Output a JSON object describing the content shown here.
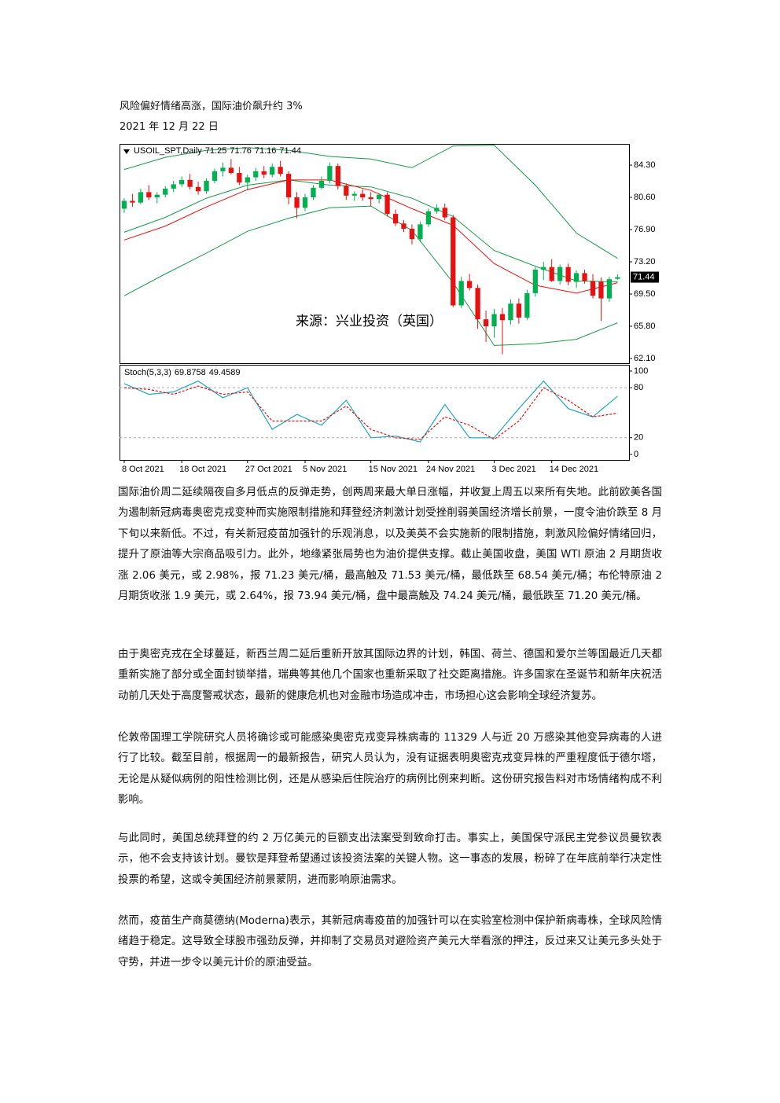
{
  "title": "风险偏好情绪高涨，国际油价飙升约 3%",
  "date": "2021 年 12 月 22 日",
  "chart_data": {
    "type": "candlestick",
    "symbol": "USOIL_SPT,Daily",
    "watermark": "来源：兴业投资（英国）",
    "up_color": "#00b050",
    "down_color": "#e81010",
    "open": [
      79.3,
      80.2,
      80.0,
      81.2,
      80.6,
      80.9,
      81.6,
      82.1,
      82.6,
      81.8,
      81.3,
      82.5,
      83.6,
      84.0,
      83.4,
      82.3,
      82.9,
      83.6,
      83.2,
      84.1,
      83.3,
      80.6,
      79.4,
      80.6,
      81.7,
      82.5,
      84.2,
      81.9,
      80.8,
      81.0,
      80.6,
      80.4,
      80.9,
      78.7,
      77.6,
      77.0,
      75.8,
      77.5,
      79.0,
      79.4,
      78.3,
      68.2,
      71.0,
      70.2,
      66.6,
      65.8,
      67.2,
      66.5,
      68.4,
      66.8,
      69.6,
      72.3,
      72.6,
      71.0,
      72.6,
      70.9,
      71.9,
      71.0,
      70.9,
      69.0,
      71.25
    ],
    "high": [
      80.5,
      81.0,
      81.6,
      82.0,
      81.2,
      81.9,
      82.5,
      83.0,
      83.3,
      82.4,
      82.8,
      83.9,
      84.6,
      85.0,
      84.1,
      83.2,
      84.0,
      84.2,
      84.5,
      84.8,
      83.6,
      81.2,
      81.0,
      82.0,
      83.0,
      84.6,
      84.5,
      82.2,
      81.3,
      81.5,
      81.2,
      81.1,
      81.2,
      79.2,
      78.0,
      77.5,
      77.8,
      79.3,
      79.8,
      79.9,
      78.6,
      71.5,
      71.8,
      70.6,
      67.6,
      67.8,
      67.9,
      68.9,
      69.0,
      70.0,
      72.6,
      73.2,
      73.5,
      72.9,
      73.0,
      72.2,
      72.3,
      71.8,
      71.4,
      71.5,
      71.76
    ],
    "low": [
      78.8,
      79.5,
      79.8,
      80.3,
      79.9,
      80.6,
      81.2,
      81.8,
      81.5,
      80.9,
      81.0,
      82.2,
      83.0,
      83.2,
      82.0,
      81.4,
      82.5,
      82.8,
      82.9,
      83.0,
      79.8,
      78.2,
      79.0,
      80.3,
      81.5,
      82.2,
      81.5,
      80.3,
      80.2,
      80.2,
      79.6,
      79.9,
      78.4,
      77.3,
      76.6,
      75.2,
      75.5,
      77.2,
      78.7,
      78.0,
      68.0,
      67.9,
      69.9,
      65.5,
      64.0,
      64.5,
      62.6,
      66.0,
      66.1,
      66.5,
      69.2,
      71.1,
      70.9,
      70.6,
      70.5,
      70.2,
      70.7,
      69.0,
      66.4,
      68.6,
      71.16
    ],
    "close": [
      80.2,
      80.0,
      81.2,
      80.6,
      80.9,
      81.6,
      82.1,
      82.6,
      81.8,
      81.3,
      82.5,
      83.6,
      84.0,
      83.4,
      82.3,
      82.9,
      83.6,
      83.2,
      84.1,
      83.3,
      80.6,
      79.4,
      80.6,
      81.7,
      82.5,
      84.2,
      81.9,
      80.8,
      81.0,
      80.6,
      80.4,
      80.9,
      78.7,
      77.6,
      77.0,
      75.8,
      77.5,
      79.0,
      79.4,
      78.3,
      68.2,
      71.0,
      70.2,
      66.6,
      65.8,
      67.2,
      66.5,
      68.4,
      66.8,
      69.6,
      72.3,
      72.6,
      71.0,
      72.6,
      70.9,
      71.9,
      71.0,
      69.3,
      69.0,
      71.2,
      71.44
    ],
    "xlim": [
      -0.57,
      61.4
    ],
    "ylim": [
      61.56,
      86.74
    ],
    "yticks": [
      {
        "value": 84.3,
        "label": "84.30"
      },
      {
        "value": 80.6,
        "label": "80.60"
      },
      {
        "value": 76.9,
        "label": "76.90"
      },
      {
        "value": 73.2,
        "label": "73.20"
      },
      {
        "value": 69.5,
        "label": "69.50"
      },
      {
        "value": 65.8,
        "label": "65.80"
      },
      {
        "value": 62.1,
        "label": "62.10"
      }
    ],
    "xticks": [
      {
        "value": 0,
        "label": "8 Oct 2021"
      },
      {
        "value": 7,
        "label": "18 Oct 2021"
      },
      {
        "value": 15,
        "label": "27 Oct 2021"
      },
      {
        "value": 22,
        "label": "5 Nov 2021"
      },
      {
        "value": 30,
        "label": "15 Nov 2021"
      },
      {
        "value": 37,
        "label": "24 Nov 2021"
      },
      {
        "value": 45,
        "label": "3 Dec 2021"
      },
      {
        "value": 52,
        "label": "14 Dec 2021"
      }
    ],
    "series": [
      {
        "color": "#1a9a4a",
        "x": [
          0,
          5,
          10,
          15,
          20,
          25,
          30,
          35,
          40,
          45,
          50,
          55,
          60
        ],
        "values": [
          83.8,
          85.2,
          86.0,
          86.3,
          86.0,
          85.3,
          85.0,
          84.0,
          86.5,
          86.6,
          82.0,
          76.5,
          73.6
        ]
      },
      {
        "color": "#1a9a4a",
        "x": [
          0,
          5,
          10,
          15,
          20,
          25,
          30,
          35,
          40,
          45,
          50,
          55,
          60
        ],
        "values": [
          76.6,
          78.3,
          80.5,
          82.0,
          82.6,
          82.0,
          81.8,
          80.5,
          78.4,
          74.5,
          72.7,
          71.0,
          70.9
        ]
      },
      {
        "color": "#1a9a4a",
        "x": [
          0,
          5,
          10,
          15,
          20,
          25,
          30,
          35,
          40,
          45,
          50,
          55,
          60
        ],
        "values": [
          69.3,
          71.8,
          74.2,
          76.7,
          78.2,
          79.4,
          79.6,
          76.8,
          70.8,
          63.6,
          63.8,
          64.3,
          66.2
        ]
      },
      {
        "color": "#e81010",
        "x": [
          0,
          5,
          10,
          15,
          20,
          25,
          30,
          35,
          40,
          45,
          50,
          55,
          60
        ],
        "values": [
          75.7,
          77.3,
          79.5,
          81.5,
          82.6,
          82.6,
          81.4,
          79.3,
          77.4,
          73.0,
          70.5,
          69.6,
          70.8
        ]
      }
    ],
    "indicator": {
      "name": "Stoch(5,3,3)",
      "ylim": [
        -6.6,
        107.5
      ],
      "yticks": [
        100,
        80,
        20,
        0
      ],
      "levels": [
        80,
        20
      ],
      "x": [
        0,
        3,
        6,
        9,
        12,
        15,
        18,
        21,
        24,
        27,
        30,
        33,
        36,
        39,
        42,
        45,
        48,
        51,
        54,
        57,
        60
      ],
      "series": [
        {
          "color": "#1fa8c0",
          "values": [
            85,
            72,
            75,
            88,
            68,
            80,
            30,
            48,
            35,
            65,
            20,
            22,
            15,
            60,
            20,
            20,
            55,
            88,
            55,
            45,
            69.8758
          ]
        },
        {
          "color": "#e81010",
          "dashed": true,
          "values": [
            80,
            78,
            72,
            82,
            72,
            75,
            40,
            40,
            40,
            58,
            30,
            20,
            18,
            45,
            35,
            18,
            40,
            80,
            65,
            45,
            49.4589
          ]
        }
      ]
    }
  },
  "paragraphs": [
    "国际油价周二延续隔夜自多月低点的反弹走势，创两周来最大单日涨幅，并收复上周五以来所有失地。此前欧美各国为遏制新冠病毒奥密克戎变种而实施限制措施和拜登经济刺激计划受挫削弱美国经济增长前景，一度令油价跌至 8 月下旬以来新低。不过，有关新冠疫苗加强针的乐观消息，以及美英不会实施新的限制措施，刺激风险偏好情绪回归，提升了原油等大宗商品吸引力。此外，地缘紧张局势也为油价提供支撑。截止美国收盘，美国 WTI 原油 2 月期货收涨 2.06 美元，或 2.98%，报 71.23 美元/桶，最高触及 71.53 美元/桶，最低跌至 68.54 美元/桶；布伦特原油 2 月期货收涨 1.9 美元，或 2.64%，报 73.94 美元/桶，盘中最高触及 74.24 美元/桶，最低跌至 71.20 美元/桶。",
    "由于奥密克戎在全球蔓延，新西兰周二延后重新开放其国际边界的计划，韩国、荷兰、德国和爱尔兰等国最近几天都重新实施了部分或全面封锁举措，瑞典等其他几个国家也重新采取了社交距离措施。许多国家在圣诞节和新年庆祝活动前几天处于高度警戒状态，最新的健康危机也对金融市场造成冲击，市场担心这会影响全球经济复苏。",
    "伦敦帝国理工学院研究人员将确诊或可能感染奥密克戎变异株病毒的 11329 人与近 20 万感染其他变异病毒的人进行了比较。截至目前，根据周一的最新报告，研究人员认为，没有证据表明奥密克戎变异株的严重程度低于德尔塔，无论是从疑似病例的阳性检测比例，还是从感染后住院治疗的病例比例来判断。这份研究报告料对市场情绪构成不利影响。",
    "与此同时，美国总统拜登的约 2 万亿美元的巨额支出法案受到致命打击。事实上，美国保守派民主党参议员曼钦表示，他不会支持该计划。曼钦是拜登希望通过该投资法案的关键人物。这一事态的发展，粉碎了在年底前举行决定性投票的希望，这或令美国经济前景蒙阴，进而影响原油需求。",
    "然而，疫苗生产商莫德纳(Moderna)表示，其新冠病毒疫苗的加强针可以在实验室检测中保护新病毒株，全球风险情绪趋于稳定。这导致全球股市强劲反弹，并抑制了交易员对避险资产美元大举看涨的押注，反过来又让美元多头处于守势，并进一步令以美元计价的原油受益。"
  ]
}
